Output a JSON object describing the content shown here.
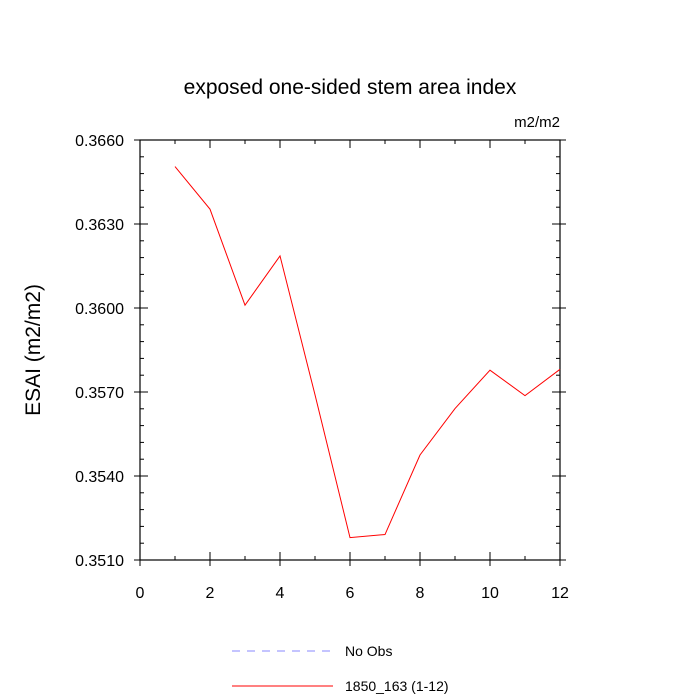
{
  "chart_data": {
    "type": "line",
    "title": "exposed one-sided stem area index",
    "units_label": "m2/m2",
    "ylabel": "ESAI  (m2/m2)",
    "xlabel": "",
    "xlim": [
      0,
      12
    ],
    "ylim": [
      0.351,
      0.366
    ],
    "x_ticks": [
      0,
      2,
      4,
      6,
      8,
      10,
      12
    ],
    "x_tick_labels": [
      "0",
      "2",
      "4",
      "6",
      "8",
      "10",
      "12"
    ],
    "y_ticks": [
      0.351,
      0.354,
      0.357,
      0.36,
      0.363,
      0.366
    ],
    "y_tick_labels": [
      "0.3510",
      "0.3540",
      "0.3570",
      "0.3600",
      "0.3630",
      "0.3660"
    ],
    "grid": false,
    "legend_position": "bottom",
    "series": [
      {
        "name": "No Obs",
        "color": "#8a8aff",
        "dashed": true,
        "x": [],
        "y": []
      },
      {
        "name": "1850_163 (1-12)",
        "color": "#ff0000",
        "dashed": false,
        "x": [
          1,
          2,
          3,
          4,
          5,
          6,
          7,
          8,
          9,
          10,
          11,
          12
        ],
        "y": [
          0.36505,
          0.36353,
          0.3601,
          0.36186,
          0.3569,
          0.3518,
          0.35191,
          0.35475,
          0.35641,
          0.35778,
          0.35687,
          0.35781
        ]
      }
    ]
  }
}
